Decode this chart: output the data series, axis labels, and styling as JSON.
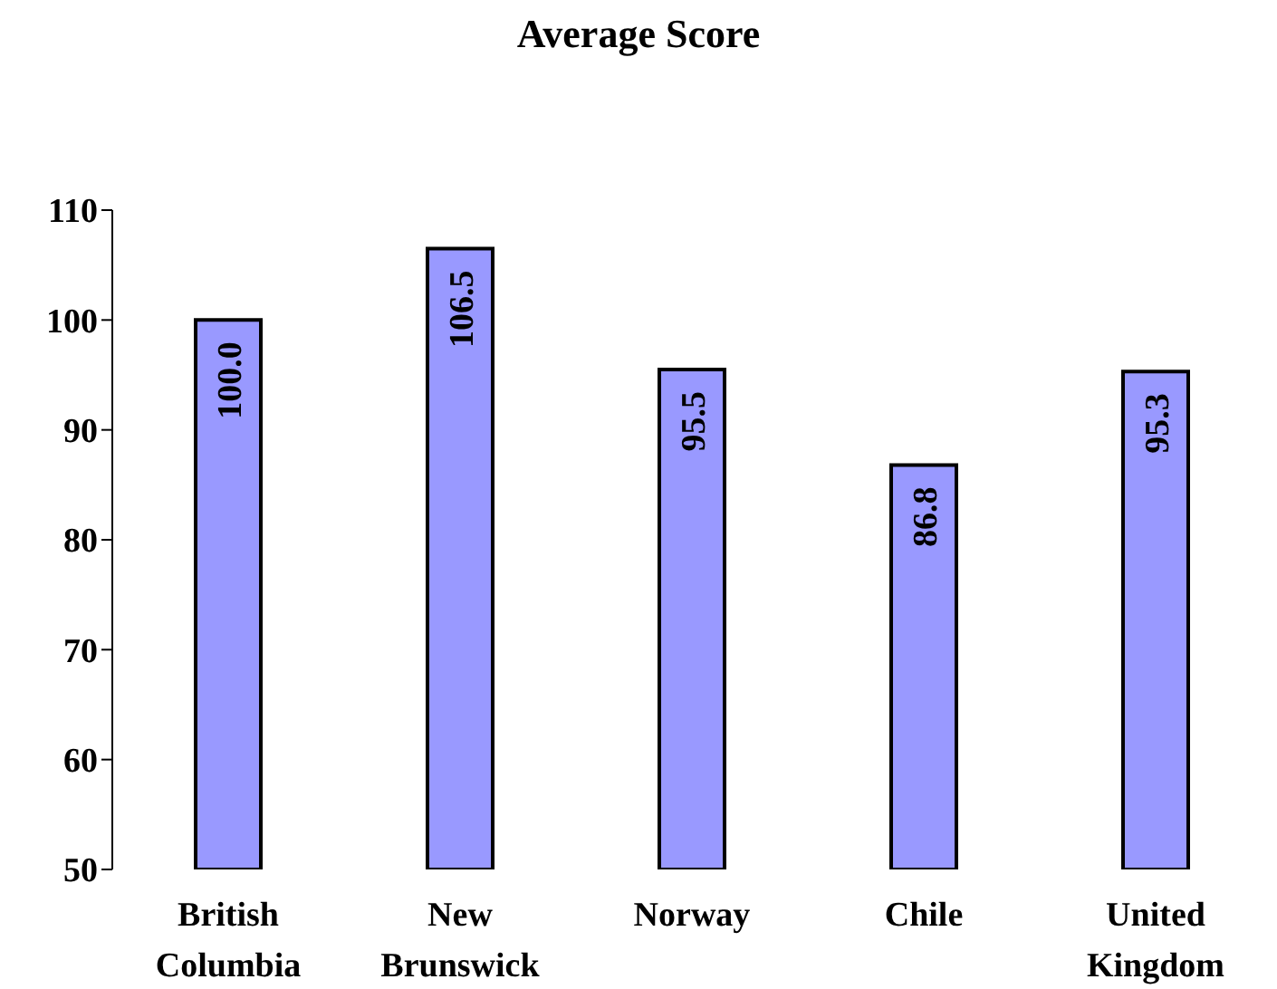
{
  "chart_data": {
    "type": "bar",
    "title": "Average Score",
    "categories": [
      "British Columbia",
      "New Brunswick",
      "Norway",
      "Chile",
      "United Kingdom"
    ],
    "values": [
      100.0,
      106.5,
      95.5,
      86.8,
      95.3
    ],
    "value_labels": [
      "100.0",
      "106.5",
      "95.5",
      "86.8",
      "95.3"
    ],
    "color": "#9999ff",
    "ylim": [
      50,
      110
    ],
    "yticks": [
      50,
      60,
      70,
      80,
      90,
      100,
      110
    ],
    "grid": false,
    "legend": false
  }
}
